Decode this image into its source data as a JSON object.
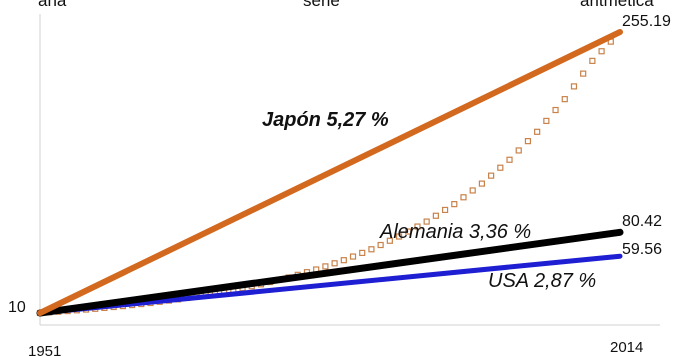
{
  "top_text": [
    "ana",
    "serie",
    "aritmética"
  ],
  "chart_data": {
    "type": "line",
    "xlim": [
      1951,
      2014
    ],
    "ylim": [
      10,
      255.19
    ],
    "x_ticks": [
      "1951",
      "2014"
    ],
    "y_start_label": "10",
    "axes": "left and bottom",
    "grid": false,
    "series": [
      {
        "name": "Japón 5,27 %",
        "color": "#d2691e",
        "style": "solid",
        "x": [
          1951,
          2014
        ],
        "y": [
          10,
          255.19
        ],
        "end_label": "255.19"
      },
      {
        "name": "Alemania 3,36 %",
        "color": "#000000",
        "style": "solid",
        "x": [
          1951,
          2014
        ],
        "y": [
          10,
          80.42
        ],
        "end_label": "80.42"
      },
      {
        "name": "USA 2,87 %",
        "color": "#1e1ed2",
        "style": "solid",
        "x": [
          1951,
          2014
        ],
        "y": [
          10,
          59.56
        ],
        "end_label": "59.56"
      },
      {
        "name": "",
        "color": "#c8824a",
        "style": "squares",
        "x": [
          1951,
          1954,
          1957,
          1960,
          1963,
          1966,
          1969,
          1972,
          1975,
          1978,
          1981,
          1984,
          1987,
          1990,
          1993,
          1996,
          1999,
          2002,
          2005,
          2008,
          2011,
          2014
        ],
        "y": [
          10,
          11.7,
          13.68,
          16.0,
          18.72,
          21.89,
          25.61,
          29.96,
          35.04,
          40.99,
          47.95,
          56.09,
          65.61,
          76.75,
          89.78,
          105.0,
          122.9,
          143.7,
          168.1,
          196.6,
          230.0,
          255.19
        ]
      }
    ]
  }
}
